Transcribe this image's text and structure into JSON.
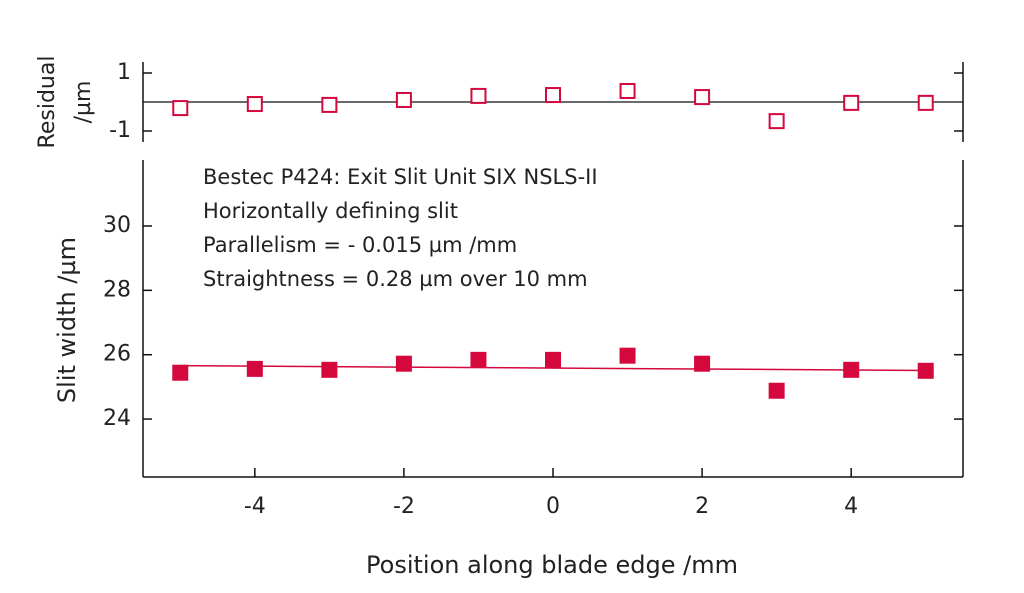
{
  "chart_data": [
    {
      "type": "scatter",
      "ylabel": [
        "Residual",
        "/µm"
      ],
      "x": [
        -5,
        -4,
        -3,
        -2,
        -1,
        0,
        1,
        2,
        3,
        4,
        5
      ],
      "values": [
        -0.21,
        -0.07,
        -0.1,
        0.07,
        0.21,
        0.24,
        0.38,
        0.17,
        -0.66,
        -0.03,
        -0.03
      ],
      "marker": "square-open",
      "color": "#d4083c",
      "xlim": [
        -5.5,
        5.5
      ],
      "ylim": [
        -1.38,
        1.38
      ],
      "yticks": [
        1,
        -1
      ]
    },
    {
      "type": "scatter",
      "xlabel": "Position along blade edge /mm",
      "ylabel": "Slit width /µm",
      "annotations": [
        "Bestec P424: Exit Slit Unit SIX NSLS-II",
        "Horizontally defining slit",
        "Parallelism = - 0.015 µm /mm",
        "Straightness = 0.28 µm over 10 mm"
      ],
      "x": [
        -5,
        -4,
        -3,
        -2,
        -1,
        0,
        1,
        2,
        3,
        4,
        5
      ],
      "values": [
        25.44,
        25.56,
        25.53,
        25.72,
        25.84,
        25.84,
        25.97,
        25.72,
        24.88,
        25.53,
        25.5
      ],
      "marker": "square-filled",
      "color": "#d4083c",
      "fit": {
        "x": [
          -5,
          5
        ],
        "values": [
          25.66,
          25.51
        ],
        "color": "#d4083c"
      },
      "xlim": [
        -5.5,
        5.5
      ],
      "xticks": [
        -4,
        -2,
        0,
        2,
        4
      ],
      "ylim": [
        22.2,
        32.05
      ],
      "yticks": [
        24,
        26,
        28,
        30
      ]
    }
  ]
}
